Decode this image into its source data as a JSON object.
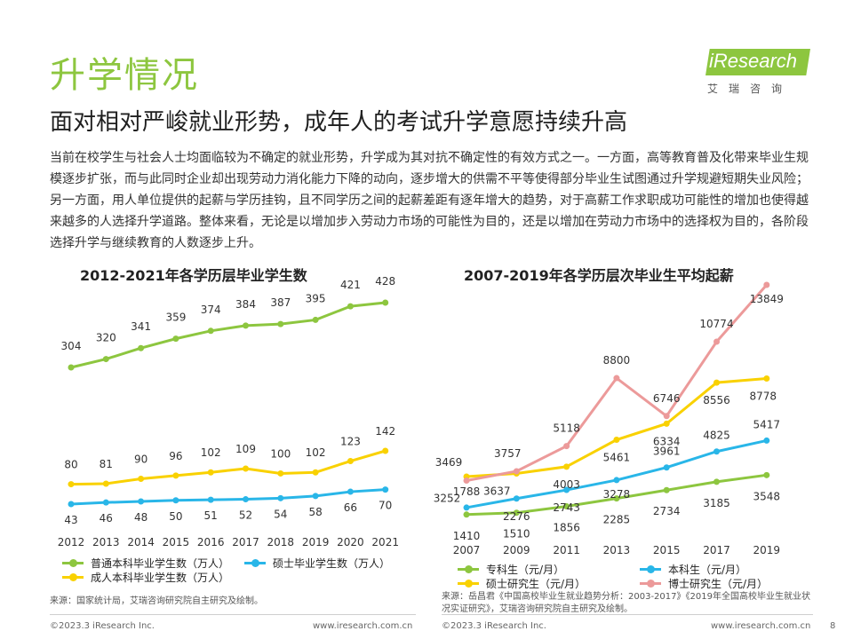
{
  "header": {
    "title": "升学情况",
    "subtitle": "面对相对严峻就业形势，成年人的考试升学意愿持续升高",
    "logo_text": "iResearch",
    "logo_cn": "艾瑞咨询"
  },
  "body": {
    "paragraph": "当前在校学生与社会人士均面临较为不确定的就业形势，升学成为其对抗不确定性的有效方式之一。一方面，高等教育普及化带来毕业生规模逐步扩张，而与此同时企业却出现劳动力消化能力下降的动向，逐步增大的供需不平等使得部分毕业生试图通过升学规避短期失业风险；另一方面，用人单位提供的起薪与学历挂钩，且不同学历之间的起薪差距有逐年增大的趋势，对于高薪工作求职成功可能性的增加也使得越来越多的人选择升学道路。整体来看，无论是以增加步入劳动力市场的可能性为目的，还是以增加在劳动力市场中的选择权为目的，各阶段选择升学与继续教育的人数逐步上升。"
  },
  "colors": {
    "green": "#8dc63f",
    "blue": "#29b6e8",
    "yellow": "#f9d100",
    "pink": "#ec9a9a"
  },
  "chart_data": [
    {
      "type": "line",
      "title": "2012-2021年各学历层毕业学生数",
      "categories": [
        "2012",
        "2013",
        "2014",
        "2015",
        "2016",
        "2017",
        "2018",
        "2019",
        "2020",
        "2021"
      ],
      "series": [
        {
          "name": "普通本科毕业学生数（万人）",
          "color": "#8dc63f",
          "values": [
            304,
            320,
            341,
            359,
            374,
            384,
            387,
            395,
            421,
            428
          ]
        },
        {
          "name": "成人本科毕业学生数（万人）",
          "color": "#f9d100",
          "values": [
            80,
            81,
            90,
            96,
            102,
            109,
            100,
            102,
            123,
            142
          ]
        },
        {
          "name": "硕士毕业学生数（万人）",
          "color": "#29b6e8",
          "values": [
            43,
            46,
            48,
            50,
            51,
            52,
            54,
            58,
            66,
            70
          ]
        }
      ],
      "legend_position": "bottom",
      "grid": false
    },
    {
      "type": "line",
      "title": "2007-2019年各学历层次毕业生平均起薪",
      "categories": [
        "2007",
        "2009",
        "2011",
        "2013",
        "2015",
        "2017",
        "2019"
      ],
      "series": [
        {
          "name": "专科生（元/月）",
          "color": "#8dc63f",
          "values": [
            1410,
            1510,
            1856,
            2285,
            2734,
            3185,
            3548
          ]
        },
        {
          "name": "本科生（元/月）",
          "color": "#29b6e8",
          "values": [
            1788,
            2276,
            2743,
            3278,
            3961,
            4825,
            5417
          ]
        },
        {
          "name": "硕士研究生（元/月）",
          "color": "#f9d100",
          "values": [
            3469,
            3637,
            4003,
            5461,
            6334,
            8556,
            8778
          ]
        },
        {
          "name": "博士研究生（元/月）",
          "color": "#ec9a9a",
          "values": [
            3252,
            3757,
            5118,
            8800,
            6746,
            10774,
            13849
          ]
        }
      ],
      "legend_position": "bottom",
      "grid": false
    }
  ],
  "sources": {
    "left": "来源：国家统计局，艾瑞咨询研究院自主研究及绘制。",
    "right": "来源：岳昌君《中国高校毕业生就业趋势分析：2003-2017》《2019年全国高校毕业生就业状况实证研究》，艾瑞咨询研究院自主研究及绘制。"
  },
  "footer": {
    "left_copyright": "©2023.3 iResearch Inc.",
    "left_url": "www.iresearch.com.cn",
    "right_copyright": "©2023.3 iResearch Inc.",
    "right_url": "www.iresearch.com.cn",
    "page_number": "8"
  }
}
